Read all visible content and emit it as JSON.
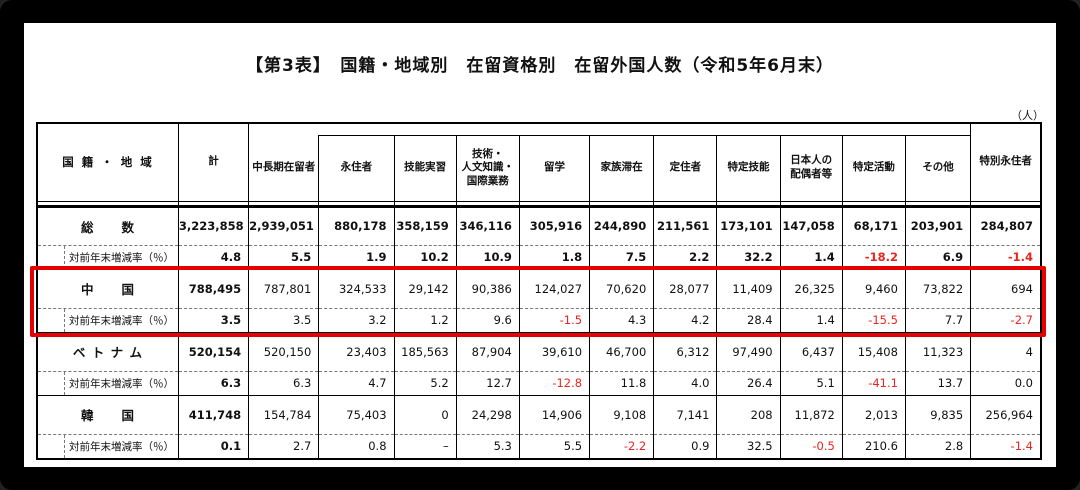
{
  "title": "【第3表】　国籍・地域別　在留資格別　在留外国人数（令和5年6月末）",
  "unit_label": "（人）",
  "table": {
    "col_headers": {
      "region": "国 籍 ・ 地 域",
      "total": "計",
      "mid_long_term": "中長期在留者",
      "sub": [
        "永住者",
        "技能実習",
        "技術・\n人文知識・\n国際業務",
        "留学",
        "家族滞在",
        "定住者",
        "特定技能",
        "日本人の\n配偶者等",
        "特定活動",
        "その他"
      ],
      "special_permanent": "特別永住者"
    },
    "rate_label": "対前年末増減率（％）",
    "rows": [
      {
        "label": "総　　数",
        "bold_all": true,
        "highlight": false,
        "values": [
          "3,223,858",
          "2,939,051",
          "880,178",
          "358,159",
          "346,116",
          "305,916",
          "244,890",
          "211,561",
          "173,101",
          "147,058",
          "68,171",
          "203,901",
          "284,807"
        ],
        "rates": [
          "4.8",
          "5.5",
          "1.9",
          "10.2",
          "10.9",
          "1.8",
          "7.5",
          "2.2",
          "32.2",
          "1.4",
          "-18.2",
          "6.9",
          "-1.4"
        ]
      },
      {
        "label": "中　　国",
        "bold_all": false,
        "highlight": true,
        "values": [
          "788,495",
          "787,801",
          "324,533",
          "29,142",
          "90,386",
          "124,027",
          "70,620",
          "28,077",
          "11,409",
          "26,325",
          "9,460",
          "73,822",
          "694"
        ],
        "rates": [
          "3.5",
          "3.5",
          "3.2",
          "1.2",
          "9.6",
          "-1.5",
          "4.3",
          "4.2",
          "28.4",
          "1.4",
          "-15.5",
          "7.7",
          "-2.7"
        ]
      },
      {
        "label": "ベ ト ナ ム",
        "bold_all": false,
        "highlight": false,
        "values": [
          "520,154",
          "520,150",
          "23,403",
          "185,563",
          "87,904",
          "39,610",
          "46,700",
          "6,312",
          "97,490",
          "6,437",
          "15,408",
          "11,323",
          "4"
        ],
        "rates": [
          "6.3",
          "6.3",
          "4.7",
          "5.2",
          "12.7",
          "-12.8",
          "11.8",
          "4.0",
          "26.4",
          "5.1",
          "-41.1",
          "13.7",
          "0.0"
        ]
      },
      {
        "label": "韓　　国",
        "bold_all": false,
        "highlight": false,
        "values": [
          "411,748",
          "154,784",
          "75,403",
          "0",
          "24,298",
          "14,906",
          "9,108",
          "7,141",
          "208",
          "11,872",
          "2,013",
          "9,835",
          "256,964"
        ],
        "rates": [
          "0.1",
          "2.7",
          "0.8",
          "–",
          "5.3",
          "5.5",
          "-2.2",
          "0.9",
          "32.5",
          "-0.5",
          "210.6",
          "2.8",
          "-1.4"
        ]
      }
    ],
    "colors": {
      "negative_value": "#e8251f",
      "highlight_box": "#e60000"
    }
  }
}
